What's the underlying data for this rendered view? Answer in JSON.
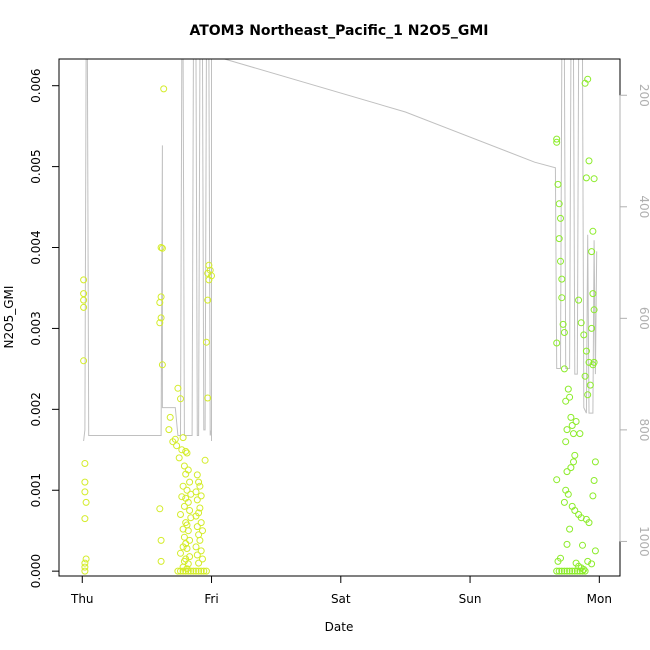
{
  "chart_data": {
    "type": "scatter",
    "title": "ATOM3 Northeast_Pacific_1 N2O5_GMI",
    "xlabel": "Date",
    "ylabel": "N2O5_GMI",
    "x_ticks": [
      "Thu",
      "Fri",
      "Sat",
      "Sun",
      "Mon"
    ],
    "xlim": [
      -0.18,
      4.16
    ],
    "ylim": [
      -6e-05,
      0.00633
    ],
    "y_ticks": [
      "0.000",
      "0.001",
      "0.002",
      "0.003",
      "0.004",
      "0.005",
      "0.006"
    ],
    "y_tick_values": [
      0,
      0.001,
      0.002,
      0.003,
      0.004,
      0.005,
      0.006
    ],
    "right_axis": {
      "ticks": [
        "200",
        "400",
        "600",
        "800",
        "1000"
      ],
      "tick_values": [
        200,
        400,
        600,
        800,
        1000
      ],
      "lim": [
        1062,
        135
      ],
      "reversed": true,
      "color": "#b0b0b0"
    },
    "grid": false,
    "colors": {
      "points_early": "#d4ec2a",
      "points_late": "#8cec2a",
      "line": "#c0c0c0",
      "axis": "#000000"
    },
    "series": [
      {
        "kind": "points",
        "color": "#d4ec2a",
        "points": [
          [
            0.01,
            0.0036
          ],
          [
            0.01,
            0.00343
          ],
          [
            0.01,
            0.00335
          ],
          [
            0.01,
            0.00326
          ],
          [
            0.01,
            0.0026
          ],
          [
            0.02,
            0.00133
          ],
          [
            0.02,
            0.0011
          ],
          [
            0.02,
            0.00098
          ],
          [
            0.03,
            0.00085
          ],
          [
            0.02,
            0.00065
          ],
          [
            0.03,
            0.00015
          ],
          [
            0.02,
            0.0001
          ],
          [
            0.02,
            5e-05
          ],
          [
            0.02,
            0.0
          ],
          [
            0.61,
            0.004
          ],
          [
            0.62,
            0.00399
          ],
          [
            0.61,
            0.00339
          ],
          [
            0.6,
            0.00332
          ],
          [
            0.61,
            0.00313
          ],
          [
            0.6,
            0.00307
          ],
          [
            0.63,
            0.00596
          ],
          [
            0.62,
            0.00255
          ],
          [
            0.6,
            0.00077
          ],
          [
            0.61,
            0.00038
          ],
          [
            0.61,
            0.00012
          ],
          [
            0.68,
            0.0019
          ],
          [
            0.67,
            0.00175
          ],
          [
            0.74,
            0.00226
          ],
          [
            0.76,
            0.00213
          ],
          [
            0.72,
            0.00163
          ],
          [
            0.73,
            0.00155
          ],
          [
            0.7,
            0.0016
          ],
          [
            0.78,
            0.00165
          ],
          [
            0.77,
            0.0015
          ],
          [
            0.75,
            0.0014
          ],
          [
            0.8,
            0.00148
          ],
          [
            0.81,
            0.00146
          ],
          [
            0.79,
            0.0013
          ],
          [
            0.82,
            0.00125
          ],
          [
            0.8,
            0.0012
          ],
          [
            0.83,
            0.0011
          ],
          [
            0.78,
            0.00105
          ],
          [
            0.81,
            0.001
          ],
          [
            0.84,
            0.00095
          ],
          [
            0.8,
            0.0009
          ],
          [
            0.77,
            0.00092
          ],
          [
            0.82,
            0.00085
          ],
          [
            0.79,
            0.0008
          ],
          [
            0.83,
            0.00075
          ],
          [
            0.76,
            0.0007
          ],
          [
            0.84,
            0.00066
          ],
          [
            0.8,
            0.0006
          ],
          [
            0.81,
            0.00057
          ],
          [
            0.78,
            0.00052
          ],
          [
            0.82,
            0.0005
          ],
          [
            0.79,
            0.00042
          ],
          [
            0.83,
            0.00038
          ],
          [
            0.8,
            0.00034
          ],
          [
            0.78,
            0.0003
          ],
          [
            0.81,
            0.00028
          ],
          [
            0.76,
            0.00022
          ],
          [
            0.83,
            0.00018
          ],
          [
            0.8,
            0.00015
          ],
          [
            0.79,
            0.00012
          ],
          [
            0.82,
            9e-05
          ],
          [
            0.78,
            5e-05
          ],
          [
            0.81,
            3e-05
          ],
          [
            0.89,
            0.00119
          ],
          [
            0.9,
            0.0011
          ],
          [
            0.91,
            0.00105
          ],
          [
            0.88,
            0.00098
          ],
          [
            0.92,
            0.00093
          ],
          [
            0.89,
            0.00088
          ],
          [
            0.91,
            0.00078
          ],
          [
            0.9,
            0.00072
          ],
          [
            0.88,
            0.00068
          ],
          [
            0.92,
            0.0006
          ],
          [
            0.89,
            0.00055
          ],
          [
            0.93,
            0.0005
          ],
          [
            0.9,
            0.00045
          ],
          [
            0.91,
            0.00038
          ],
          [
            0.88,
            0.0003
          ],
          [
            0.92,
            0.00025
          ],
          [
            0.89,
            0.0002
          ],
          [
            0.93,
            0.00015
          ],
          [
            0.9,
            0.0001
          ],
          [
            0.95,
            0.00137
          ],
          [
            0.98,
            0.00378
          ],
          [
            0.99,
            0.00372
          ],
          [
            0.97,
            0.00368
          ],
          [
            1.0,
            0.00365
          ],
          [
            0.98,
            0.0036
          ],
          [
            0.97,
            0.00335
          ],
          [
            0.96,
            0.00283
          ],
          [
            0.97,
            0.00214
          ],
          [
            0.74,
            0.0
          ],
          [
            0.76,
            0.0
          ],
          [
            0.78,
            0.0
          ],
          [
            0.8,
            0.0
          ],
          [
            0.82,
            0.0
          ],
          [
            0.84,
            0.0
          ],
          [
            0.86,
            0.0
          ],
          [
            0.88,
            0.0
          ],
          [
            0.9,
            0.0
          ],
          [
            0.92,
            0.0
          ],
          [
            0.94,
            0.0
          ],
          [
            0.96,
            0.0
          ]
        ]
      },
      {
        "kind": "points",
        "color": "#8cec2a",
        "points": [
          [
            3.67,
            0.00534
          ],
          [
            3.67,
            0.0053
          ],
          [
            3.68,
            0.00478
          ],
          [
            3.69,
            0.00454
          ],
          [
            3.7,
            0.00436
          ],
          [
            3.69,
            0.00411
          ],
          [
            3.7,
            0.00383
          ],
          [
            3.71,
            0.00361
          ],
          [
            3.71,
            0.00338
          ],
          [
            3.72,
            0.00305
          ],
          [
            3.73,
            0.00295
          ],
          [
            3.67,
            0.00282
          ],
          [
            3.73,
            0.0025
          ],
          [
            3.74,
            0.0021
          ],
          [
            3.76,
            0.00225
          ],
          [
            3.77,
            0.00215
          ],
          [
            3.78,
            0.0019
          ],
          [
            3.75,
            0.00175
          ],
          [
            3.79,
            0.0018
          ],
          [
            3.8,
            0.0017
          ],
          [
            3.82,
            0.00185
          ],
          [
            3.85,
            0.0017
          ],
          [
            3.74,
            0.0016
          ],
          [
            3.81,
            0.00143
          ],
          [
            3.8,
            0.00135
          ],
          [
            3.78,
            0.00128
          ],
          [
            3.75,
            0.00123
          ],
          [
            3.67,
            0.00113
          ],
          [
            3.74,
            0.001
          ],
          [
            3.76,
            0.00095
          ],
          [
            3.73,
            0.00085
          ],
          [
            3.79,
            0.0008
          ],
          [
            3.81,
            0.00075
          ],
          [
            3.84,
            0.0007
          ],
          [
            3.86,
            0.00066
          ],
          [
            3.9,
            0.00064
          ],
          [
            3.92,
            0.0006
          ],
          [
            3.77,
            0.00052
          ],
          [
            3.75,
            0.00033
          ],
          [
            3.87,
            0.00032
          ],
          [
            3.7,
            0.00016
          ],
          [
            3.68,
            0.00012
          ],
          [
            3.82,
            0.0001
          ],
          [
            3.84,
            6e-05
          ],
          [
            3.86,
            4e-05
          ],
          [
            3.88,
            2e-05
          ],
          [
            3.91,
            0.00012
          ],
          [
            3.94,
            9e-05
          ],
          [
            3.84,
            0.00335
          ],
          [
            3.86,
            0.00307
          ],
          [
            3.88,
            0.00292
          ],
          [
            3.9,
            0.00272
          ],
          [
            3.92,
            0.00258
          ],
          [
            3.95,
            0.00255
          ],
          [
            3.89,
            0.00241
          ],
          [
            3.93,
            0.0023
          ],
          [
            3.91,
            0.00218
          ],
          [
            3.89,
            0.00603
          ],
          [
            3.91,
            0.00608
          ],
          [
            3.92,
            0.00507
          ],
          [
            3.9,
            0.00486
          ],
          [
            3.96,
            0.00485
          ],
          [
            3.95,
            0.0042
          ],
          [
            3.94,
            0.00395
          ],
          [
            3.95,
            0.00343
          ],
          [
            3.96,
            0.00323
          ],
          [
            3.94,
            0.003
          ],
          [
            3.96,
            0.00258
          ],
          [
            3.97,
            0.00135
          ],
          [
            3.96,
            0.00112
          ],
          [
            3.95,
            0.00093
          ],
          [
            3.97,
            0.00025
          ],
          [
            3.67,
            0.0
          ],
          [
            3.69,
            0.0
          ],
          [
            3.71,
            0.0
          ],
          [
            3.73,
            0.0
          ],
          [
            3.75,
            0.0
          ],
          [
            3.77,
            0.0
          ],
          [
            3.79,
            0.0
          ],
          [
            3.81,
            0.0
          ],
          [
            3.83,
            0.0
          ],
          [
            3.85,
            0.0
          ],
          [
            3.87,
            0.0
          ],
          [
            3.89,
            0.0
          ]
        ]
      },
      {
        "kind": "line",
        "axis": "right",
        "color": "#c0c0c0",
        "points": [
          [
            0.01,
            820
          ],
          [
            0.02,
            800
          ],
          [
            0.03,
            130
          ],
          [
            0.04,
            130
          ],
          [
            0.05,
            810
          ],
          [
            0.1,
            810
          ],
          [
            0.3,
            810
          ],
          [
            0.5,
            810
          ],
          [
            0.6,
            810
          ],
          [
            0.6,
            810
          ],
          [
            0.61,
            810
          ],
          [
            0.62,
            290
          ],
          [
            0.62,
            760
          ],
          [
            0.69,
            760
          ],
          [
            0.72,
            760
          ],
          [
            0.74,
            810
          ],
          [
            0.75,
            810
          ],
          [
            0.76,
            810
          ],
          [
            0.77,
            130
          ],
          [
            0.78,
            130
          ],
          [
            0.79,
            810
          ],
          [
            0.85,
            810
          ],
          [
            0.86,
            130
          ],
          [
            0.88,
            130
          ],
          [
            0.89,
            810
          ],
          [
            0.9,
            810
          ],
          [
            0.91,
            130
          ],
          [
            0.93,
            130
          ],
          [
            0.94,
            800
          ],
          [
            0.95,
            800
          ],
          [
            0.96,
            130
          ],
          [
            0.98,
            130
          ],
          [
            0.99,
            810
          ],
          [
            1.0,
            800
          ],
          [
            1.0,
            820
          ],
          [
            1.0,
            810
          ],
          [
            1.0,
            130
          ],
          [
            1.1,
            130
          ],
          [
            2.5,
            230
          ],
          [
            3.5,
            320
          ],
          [
            3.66,
            330
          ],
          [
            3.67,
            690
          ],
          [
            3.7,
            690
          ],
          [
            3.71,
            130
          ],
          [
            3.73,
            130
          ],
          [
            3.74,
            690
          ],
          [
            3.77,
            690
          ],
          [
            3.78,
            130
          ],
          [
            3.8,
            130
          ],
          [
            3.81,
            700
          ],
          [
            3.83,
            700
          ],
          [
            3.84,
            130
          ],
          [
            3.87,
            130
          ],
          [
            3.88,
            760
          ],
          [
            3.9,
            770
          ],
          [
            3.91,
            450
          ],
          [
            3.92,
            770
          ],
          [
            3.95,
            770
          ],
          [
            3.96,
            460
          ],
          [
            3.97,
            700
          ],
          [
            3.98,
            480
          ]
        ]
      }
    ]
  }
}
